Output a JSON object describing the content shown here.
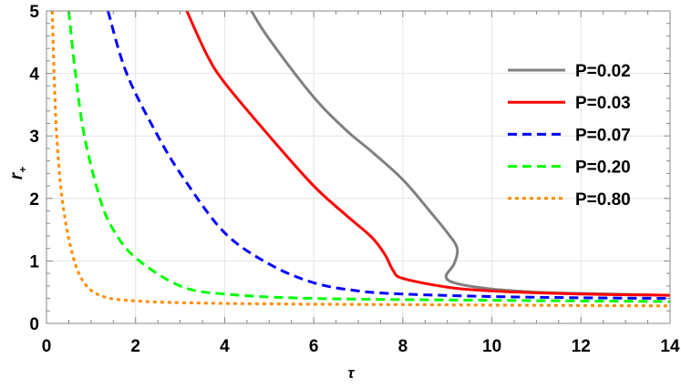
{
  "chart_data": {
    "type": "line",
    "xlabel": "τ",
    "ylabel": "r",
    "ylabel_sub": "+",
    "xlim": [
      0,
      14
    ],
    "ylim": [
      0,
      5
    ],
    "xticks": [
      "0",
      "2",
      "4",
      "6",
      "8",
      "10",
      "12",
      "14"
    ],
    "yticks": [
      "0",
      "1",
      "2",
      "3",
      "4",
      "5"
    ],
    "grid": true,
    "legend_position": "right",
    "series": [
      {
        "name": "P=0.02",
        "color": "#808080",
        "dash": "solid",
        "points": [
          [
            4.6,
            5
          ],
          [
            5,
            4.55
          ],
          [
            6,
            3.62
          ],
          [
            6.73,
            3.09
          ],
          [
            7.3,
            2.75
          ],
          [
            8,
            2.3
          ],
          [
            8.6,
            1.8
          ],
          [
            9.0,
            1.45
          ],
          [
            9.22,
            1.2
          ],
          [
            9.15,
            0.95
          ],
          [
            8.97,
            0.75
          ],
          [
            9.2,
            0.64
          ],
          [
            10,
            0.55
          ],
          [
            11,
            0.5
          ],
          [
            12,
            0.48
          ],
          [
            14,
            0.45
          ]
        ]
      },
      {
        "name": "P=0.03",
        "color": "#ff0000",
        "dash": "solid",
        "points": [
          [
            3.15,
            5
          ],
          [
            3.6,
            4.3
          ],
          [
            4,
            3.85
          ],
          [
            5,
            3.0
          ],
          [
            6,
            2.2
          ],
          [
            6.73,
            1.73
          ],
          [
            7.3,
            1.38
          ],
          [
            7.6,
            1.1
          ],
          [
            7.78,
            0.85
          ],
          [
            8,
            0.72
          ],
          [
            9,
            0.58
          ],
          [
            10,
            0.52
          ],
          [
            12,
            0.47
          ],
          [
            14,
            0.45
          ]
        ]
      },
      {
        "name": "P=0.07",
        "color": "#0000ff",
        "dash": "dashed",
        "points": [
          [
            1.38,
            5
          ],
          [
            1.8,
            4
          ],
          [
            2.5,
            3
          ],
          [
            3.1,
            2.3
          ],
          [
            4,
            1.45
          ],
          [
            5,
            0.95
          ],
          [
            6,
            0.65
          ],
          [
            7,
            0.52
          ],
          [
            8,
            0.47
          ],
          [
            10,
            0.43
          ],
          [
            12,
            0.41
          ],
          [
            14,
            0.4
          ]
        ]
      },
      {
        "name": "P=0.20",
        "color": "#00ff00",
        "dash": "dashed",
        "points": [
          [
            0.5,
            5
          ],
          [
            0.65,
            4
          ],
          [
            0.85,
            3
          ],
          [
            1.2,
            2
          ],
          [
            1.5,
            1.5
          ],
          [
            2,
            1.05
          ],
          [
            3,
            0.6
          ],
          [
            4,
            0.47
          ],
          [
            6,
            0.4
          ],
          [
            10,
            0.37
          ],
          [
            14,
            0.35
          ]
        ]
      },
      {
        "name": "P=0.80",
        "color": "#ff8c00",
        "dash": "dotted",
        "points": [
          [
            0.13,
            5
          ],
          [
            0.17,
            4
          ],
          [
            0.23,
            3
          ],
          [
            0.35,
            2
          ],
          [
            0.55,
            1.2
          ],
          [
            0.8,
            0.7
          ],
          [
            1.2,
            0.45
          ],
          [
            2,
            0.36
          ],
          [
            4,
            0.32
          ],
          [
            8,
            0.3
          ],
          [
            14,
            0.28
          ]
        ]
      }
    ]
  }
}
